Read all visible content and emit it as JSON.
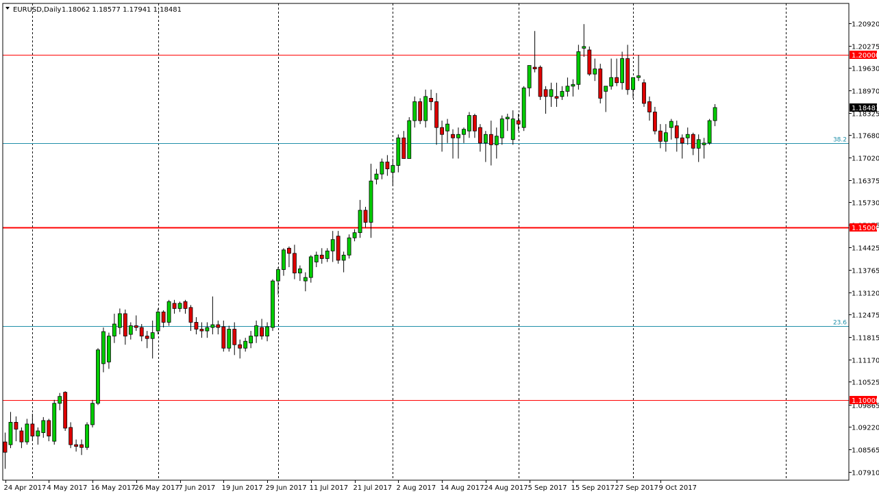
{
  "header": {
    "symbol": "EURUSD,Daily",
    "ohlc": "1.18062 1.18577 1.17941 1.18481"
  },
  "colors": {
    "background": "#ffffff",
    "frame": "#000000",
    "grid": "#000000",
    "bull": "#00cc00",
    "bear": "#dd0000",
    "wick": "#000000",
    "hline_red": "#ff0000",
    "fib_line": "#1e8ea8",
    "price_tag_bg": "#ff0000",
    "current_tag_bg": "#000000"
  },
  "chart_data": {
    "type": "candlestick",
    "symbol": "EURUSD",
    "timeframe": "Daily",
    "ylim": [
      1.0767,
      1.215
    ],
    "y_ticks": [
      "1.20920",
      "1.20275",
      "1.19630",
      "1.18970",
      "1.18325",
      "1.17680",
      "1.17020",
      "1.16375",
      "1.15730",
      "1.15075",
      "1.14425",
      "1.13765",
      "1.13120",
      "1.12475",
      "1.11815",
      "1.11170",
      "1.10525",
      "1.09865",
      "1.09220",
      "1.08565",
      "1.07910"
    ],
    "x_labels": [
      "24 Apr 2017",
      "4 May 2017",
      "16 May 2017",
      "26 May 2017",
      "7 Jun 2017",
      "19 Jun 2017",
      "29 Jun 2017",
      "11 Jul 2017",
      "21 Jul 2017",
      "2 Aug 2017",
      "14 Aug 2017",
      "24 Aug 2017",
      "5 Sep 2017",
      "15 Sep 2017",
      "27 Sep 2017",
      "9 Oct 2017"
    ],
    "x_label_bars": [
      0,
      8,
      16,
      24,
      32,
      40,
      48,
      56,
      64,
      72,
      80,
      88,
      96,
      104,
      112,
      120
    ],
    "grid_bars": [
      5,
      28,
      50,
      71,
      94,
      115,
      143
    ],
    "horizontal_levels": [
      {
        "price": 1.2,
        "label": "1.20000",
        "style": "red"
      },
      {
        "price": 1.15,
        "label": "1.15000",
        "style": "red-thick"
      },
      {
        "price": 1.1,
        "label": "1.10000",
        "style": "red"
      }
    ],
    "fib_levels": [
      {
        "price": 1.1745,
        "label": "38.2"
      },
      {
        "price": 1.1215,
        "label": "23.6"
      }
    ],
    "current_price": {
      "price": 1.18481,
      "label": "1.18481"
    },
    "candles": [
      [
        1.0878,
        1.0905,
        1.08,
        1.0848
      ],
      [
        1.087,
        1.0965,
        1.086,
        1.0935
      ],
      [
        1.0935,
        1.0952,
        1.088,
        1.0915
      ],
      [
        1.091,
        1.092,
        1.086,
        1.0878
      ],
      [
        1.0878,
        1.0945,
        1.087,
        1.093
      ],
      [
        1.093,
        1.096,
        1.088,
        1.0895
      ],
      [
        1.0895,
        1.092,
        1.087,
        1.091
      ],
      [
        1.0905,
        1.095,
        1.089,
        1.094
      ],
      [
        1.094,
        1.0945,
        1.088,
        1.0895
      ],
      [
        1.088,
        1.1,
        1.087,
        1.099
      ],
      [
        1.099,
        1.102,
        1.097,
        1.101
      ],
      [
        1.1022,
        1.1025,
        1.091,
        1.0918
      ],
      [
        1.092,
        1.0935,
        1.086,
        1.087
      ],
      [
        1.087,
        1.0885,
        1.085,
        1.0865
      ],
      [
        1.087,
        1.0885,
        1.084,
        1.0862
      ],
      [
        1.0862,
        1.0935,
        1.0855,
        1.0928
      ],
      [
        1.0928,
        1.1,
        1.092,
        1.099
      ],
      [
        1.099,
        1.115,
        1.0985,
        1.1145
      ],
      [
        1.1105,
        1.121,
        1.108,
        1.1198
      ],
      [
        1.111,
        1.1195,
        1.109,
        1.1185
      ],
      [
        1.1185,
        1.125,
        1.1165,
        1.122
      ],
      [
        1.121,
        1.1265,
        1.119,
        1.125
      ],
      [
        1.125,
        1.1262,
        1.116,
        1.1185
      ],
      [
        1.119,
        1.1225,
        1.1175,
        1.1215
      ],
      [
        1.1215,
        1.1245,
        1.12,
        1.121
      ],
      [
        1.121,
        1.122,
        1.117,
        1.1185
      ],
      [
        1.1185,
        1.12,
        1.115,
        1.1178
      ],
      [
        1.1178,
        1.123,
        1.112,
        1.1195
      ],
      [
        1.12,
        1.1265,
        1.119,
        1.1255
      ],
      [
        1.1255,
        1.126,
        1.121,
        1.1225
      ],
      [
        1.1225,
        1.129,
        1.1215,
        1.1285
      ],
      [
        1.128,
        1.129,
        1.125,
        1.1265
      ],
      [
        1.1265,
        1.1285,
        1.1255,
        1.128
      ],
      [
        1.1285,
        1.129,
        1.125,
        1.1265
      ],
      [
        1.1268,
        1.1275,
        1.12,
        1.1225
      ],
      [
        1.1225,
        1.124,
        1.119,
        1.1205
      ],
      [
        1.1205,
        1.1225,
        1.118,
        1.12
      ],
      [
        1.12,
        1.1225,
        1.118,
        1.121
      ],
      [
        1.121,
        1.13,
        1.119,
        1.1218
      ],
      [
        1.1218,
        1.123,
        1.119,
        1.121
      ],
      [
        1.1212,
        1.123,
        1.114,
        1.115
      ],
      [
        1.115,
        1.1215,
        1.114,
        1.1205
      ],
      [
        1.1205,
        1.1225,
        1.113,
        1.116
      ],
      [
        1.116,
        1.1175,
        1.112,
        1.115
      ],
      [
        1.115,
        1.118,
        1.114,
        1.117
      ],
      [
        1.1165,
        1.12,
        1.115,
        1.1185
      ],
      [
        1.1185,
        1.123,
        1.1165,
        1.1215
      ],
      [
        1.121,
        1.1235,
        1.1175,
        1.1185
      ],
      [
        1.1185,
        1.1225,
        1.117,
        1.1212
      ],
      [
        1.121,
        1.135,
        1.12,
        1.1345
      ],
      [
        1.1345,
        1.1385,
        1.1305,
        1.1378
      ],
      [
        1.1378,
        1.144,
        1.136,
        1.1435
      ],
      [
        1.144,
        1.1445,
        1.1385,
        1.1425
      ],
      [
        1.1425,
        1.145,
        1.135,
        1.1368
      ],
      [
        1.1368,
        1.139,
        1.1345,
        1.138
      ],
      [
        1.1345,
        1.137,
        1.1315,
        1.1355
      ],
      [
        1.1355,
        1.142,
        1.134,
        1.1415
      ],
      [
        1.14,
        1.143,
        1.1385,
        1.142
      ],
      [
        1.142,
        1.144,
        1.1395,
        1.141
      ],
      [
        1.141,
        1.144,
        1.14,
        1.1432
      ],
      [
        1.1432,
        1.149,
        1.14,
        1.1465
      ],
      [
        1.1475,
        1.149,
        1.1395,
        1.1405
      ],
      [
        1.1405,
        1.143,
        1.137,
        1.142
      ],
      [
        1.142,
        1.148,
        1.141,
        1.147
      ],
      [
        1.147,
        1.1495,
        1.146,
        1.1485
      ],
      [
        1.1485,
        1.158,
        1.147,
        1.155
      ],
      [
        1.155,
        1.156,
        1.15,
        1.1515
      ],
      [
        1.1515,
        1.1685,
        1.147,
        1.1635
      ],
      [
        1.164,
        1.167,
        1.1625,
        1.1655
      ],
      [
        1.1655,
        1.17,
        1.164,
        1.169
      ],
      [
        1.169,
        1.171,
        1.165,
        1.167
      ],
      [
        1.166,
        1.17,
        1.162,
        1.168
      ],
      [
        1.168,
        1.177,
        1.166,
        1.176
      ],
      [
        1.176,
        1.178,
        1.17,
        1.17
      ],
      [
        1.17,
        1.182,
        1.17,
        1.181
      ],
      [
        1.181,
        1.188,
        1.179,
        1.1865
      ],
      [
        1.1865,
        1.1875,
        1.18,
        1.181
      ],
      [
        1.181,
        1.19,
        1.179,
        1.188
      ],
      [
        1.1875,
        1.19,
        1.184,
        1.1865
      ],
      [
        1.1865,
        1.189,
        1.174,
        1.179
      ],
      [
        1.179,
        1.181,
        1.172,
        1.177
      ],
      [
        1.178,
        1.1815,
        1.1745,
        1.18
      ],
      [
        1.177,
        1.1785,
        1.17,
        1.176
      ],
      [
        1.176,
        1.179,
        1.17,
        1.177
      ],
      [
        1.177,
        1.179,
        1.1745,
        1.1785
      ],
      [
        1.178,
        1.1835,
        1.176,
        1.1825
      ],
      [
        1.1825,
        1.183,
        1.176,
        1.178
      ],
      [
        1.179,
        1.18,
        1.172,
        1.1745
      ],
      [
        1.1745,
        1.178,
        1.169,
        1.177
      ],
      [
        1.177,
        1.181,
        1.168,
        1.174
      ],
      [
        1.174,
        1.179,
        1.17,
        1.1765
      ],
      [
        1.176,
        1.1825,
        1.174,
        1.1815
      ],
      [
        1.1815,
        1.183,
        1.178,
        1.182
      ],
      [
        1.1755,
        1.184,
        1.174,
        1.1815
      ],
      [
        1.181,
        1.183,
        1.178,
        1.18
      ],
      [
        1.179,
        1.191,
        1.178,
        1.1905
      ],
      [
        1.1905,
        1.197,
        1.188,
        1.197
      ],
      [
        1.1965,
        1.207,
        1.195,
        1.196
      ],
      [
        1.1965,
        1.197,
        1.187,
        1.188
      ],
      [
        1.19,
        1.191,
        1.183,
        1.188
      ],
      [
        1.188,
        1.192,
        1.185,
        1.19
      ],
      [
        1.188,
        1.192,
        1.185,
        1.1875
      ],
      [
        1.188,
        1.191,
        1.187,
        1.1895
      ],
      [
        1.1895,
        1.1935,
        1.188,
        1.191
      ],
      [
        1.191,
        1.193,
        1.188,
        1.1915
      ],
      [
        1.1915,
        1.203,
        1.19,
        1.201
      ],
      [
        1.202,
        1.209,
        1.1995,
        1.2025
      ],
      [
        1.2015,
        1.2025,
        1.194,
        1.1945
      ],
      [
        1.1945,
        1.199,
        1.1925,
        1.196
      ],
      [
        1.196,
        1.1975,
        1.186,
        1.1875
      ],
      [
        1.1895,
        1.1905,
        1.1835,
        1.191
      ],
      [
        1.191,
        1.199,
        1.19,
        1.1935
      ],
      [
        1.1935,
        1.199,
        1.191,
        1.192
      ],
      [
        1.192,
        1.201,
        1.19,
        1.199
      ],
      [
        1.199,
        1.203,
        1.1885,
        1.19
      ],
      [
        1.19,
        1.193,
        1.1875,
        1.1935
      ],
      [
        1.1935,
        1.2,
        1.1925,
        1.194
      ],
      [
        1.192,
        1.193,
        1.185,
        1.186
      ],
      [
        1.1865,
        1.188,
        1.181,
        1.1835
      ],
      [
        1.1835,
        1.185,
        1.177,
        1.178
      ],
      [
        1.178,
        1.18,
        1.173,
        1.175
      ],
      [
        1.175,
        1.18,
        1.172,
        1.1775
      ],
      [
        1.179,
        1.1815,
        1.1755,
        1.1808
      ],
      [
        1.1795,
        1.181,
        1.172,
        1.176
      ],
      [
        1.176,
        1.177,
        1.17,
        1.1745
      ],
      [
        1.176,
        1.179,
        1.174,
        1.177
      ],
      [
        1.177,
        1.1775,
        1.171,
        1.173
      ],
      [
        1.173,
        1.177,
        1.169,
        1.1755
      ],
      [
        1.174,
        1.176,
        1.17,
        1.1745
      ],
      [
        1.1745,
        1.1815,
        1.174,
        1.181
      ],
      [
        1.181,
        1.1858,
        1.1794,
        1.1848
      ]
    ]
  }
}
